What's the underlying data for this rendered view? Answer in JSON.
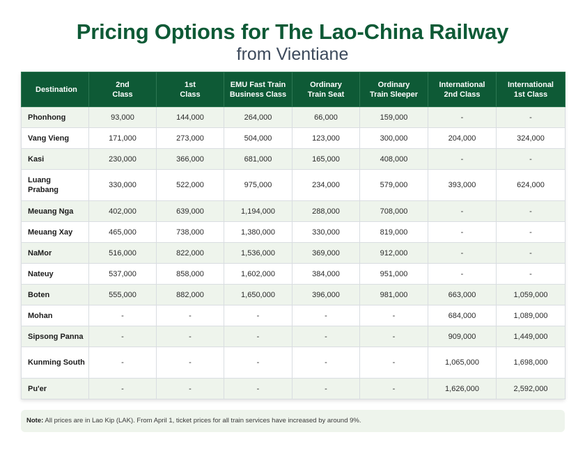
{
  "title": "Pricing Options for The Lao-China Railway",
  "subtitle": "from Vientiane",
  "columns": [
    {
      "line1": "Destination",
      "line2": ""
    },
    {
      "line1": "2nd",
      "line2": "Class"
    },
    {
      "line1": "1st",
      "line2": "Class"
    },
    {
      "line1": "EMU Fast Train",
      "line2": "Business Class"
    },
    {
      "line1": "Ordinary",
      "line2": "Train Seat"
    },
    {
      "line1": "Ordinary",
      "line2": "Train Sleeper"
    },
    {
      "line1": "International",
      "line2": "2nd Class"
    },
    {
      "line1": "International",
      "line2": "1st Class"
    }
  ],
  "rows": [
    {
      "destination": "Phonhong",
      "values": [
        "93,000",
        "144,000",
        "264,000",
        "66,000",
        "159,000",
        "-",
        "-"
      ]
    },
    {
      "destination": "Vang Vieng",
      "values": [
        "171,000",
        "273,000",
        "504,000",
        "123,000",
        "300,000",
        "204,000",
        "324,000"
      ]
    },
    {
      "destination": "Kasi",
      "values": [
        "230,000",
        "366,000",
        "681,000",
        "165,000",
        "408,000",
        "-",
        "-"
      ]
    },
    {
      "destination": "Luang Prabang",
      "values": [
        "330,000",
        "522,000",
        "975,000",
        "234,000",
        "579,000",
        "393,000",
        "624,000"
      ]
    },
    {
      "destination": "Meuang Nga",
      "values": [
        "402,000",
        "639,000",
        "1,194,000",
        "288,000",
        "708,000",
        "-",
        "-"
      ]
    },
    {
      "destination": "Meuang Xay",
      "values": [
        "465,000",
        "738,000",
        "1,380,000",
        "330,000",
        "819,000",
        "-",
        "-"
      ]
    },
    {
      "destination": "NaMor",
      "values": [
        "516,000",
        "822,000",
        "1,536,000",
        "369,000",
        "912,000",
        "-",
        "-"
      ]
    },
    {
      "destination": "Nateuy",
      "values": [
        "537,000",
        "858,000",
        "1,602,000",
        "384,000",
        "951,000",
        "-",
        "-"
      ]
    },
    {
      "destination": "Boten",
      "values": [
        "555,000",
        "882,000",
        "1,650,000",
        "396,000",
        "981,000",
        "663,000",
        "1,059,000"
      ]
    },
    {
      "destination": "Mohan",
      "values": [
        "-",
        "-",
        "-",
        "-",
        "-",
        "684,000",
        "1,089,000"
      ]
    },
    {
      "destination": "Sipsong Panna",
      "values": [
        "-",
        "-",
        "-",
        "-",
        "-",
        "909,000",
        "1,449,000"
      ]
    },
    {
      "destination": "Kunming South",
      "values": [
        "-",
        "-",
        "-",
        "-",
        "-",
        "1,065,000",
        "1,698,000"
      ]
    },
    {
      "destination": "Pu'er",
      "values": [
        "-",
        "-",
        "-",
        "-",
        "-",
        "1,626,000",
        "2,592,000"
      ]
    }
  ],
  "note": {
    "label": "Note:",
    "text": "All prices are in Lao Kip (LAK). From April 1, ticket prices for all train services have increased by around 9%."
  }
}
